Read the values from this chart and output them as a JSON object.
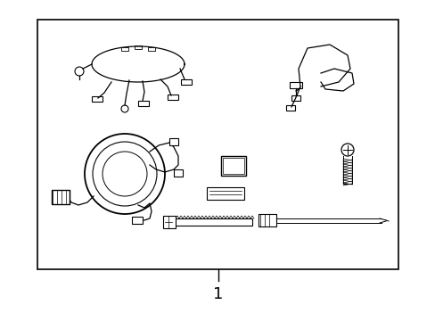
{
  "background_color": "#ffffff",
  "border_color": "#000000",
  "line_color": "#000000",
  "label_number": "1",
  "label_fontsize": 13,
  "fig_width": 4.89,
  "fig_height": 3.6,
  "dpi": 100
}
